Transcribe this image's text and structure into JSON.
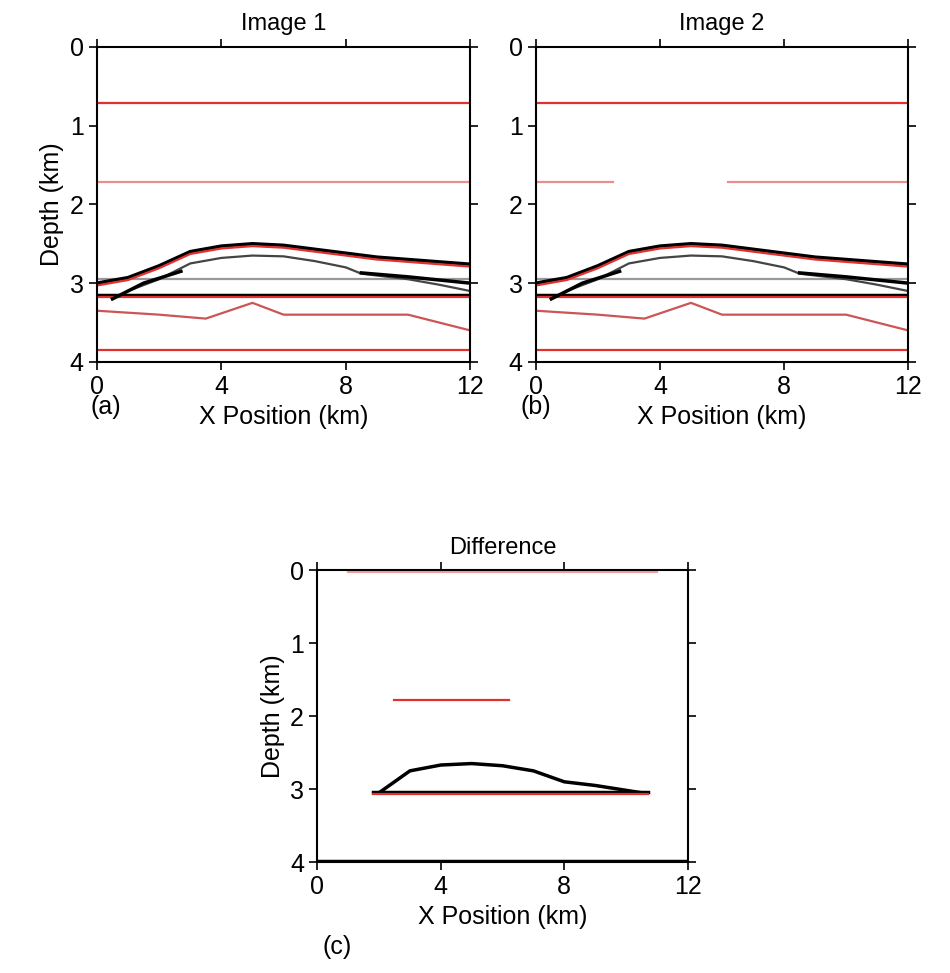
{
  "chart_data": [
    {
      "type": "line",
      "title": "Image 1",
      "x_label": "X Position (km)",
      "y_label": "Depth (km)",
      "annotations": [
        "(a)"
      ],
      "xlim": [
        0,
        12
      ],
      "xticks": [
        0,
        4,
        8,
        12
      ],
      "ylim": [
        4,
        0
      ],
      "yticks": [
        0,
        1,
        2,
        3,
        4
      ],
      "series": [
        {
          "color": "#e03030",
          "x": [
            0,
            12
          ],
          "values": [
            0.72,
            0.72
          ]
        },
        {
          "color": "#e89090",
          "x": [
            0,
            12
          ],
          "values": [
            1.72,
            1.72
          ]
        },
        {
          "color": "#999999",
          "x": [
            0,
            12
          ],
          "values": [
            2.95,
            2.95
          ]
        },
        {
          "color": "#000000",
          "x": [
            0,
            12
          ],
          "values": [
            3.15,
            3.15
          ]
        },
        {
          "color": "#e03030",
          "x": [
            0,
            12
          ],
          "values": [
            3.17,
            3.17
          ]
        },
        {
          "color": "#000000",
          "x": [
            0,
            1,
            2,
            3,
            4,
            5,
            6,
            7,
            8,
            9,
            10,
            11,
            12
          ],
          "values": [
            3.0,
            2.93,
            2.78,
            2.6,
            2.53,
            2.5,
            2.52,
            2.57,
            2.62,
            2.67,
            2.7,
            2.73,
            2.76
          ]
        },
        {
          "color": "#e03030",
          "x": [
            0,
            1,
            2,
            3,
            4,
            5,
            6,
            7,
            8,
            9,
            10,
            11,
            12
          ],
          "values": [
            3.03,
            2.96,
            2.81,
            2.63,
            2.56,
            2.53,
            2.55,
            2.6,
            2.65,
            2.7,
            2.73,
            2.76,
            2.79
          ]
        },
        {
          "color": "#444444",
          "x": [
            1,
            2,
            3,
            4,
            5,
            6,
            7,
            8,
            8.5,
            10,
            11,
            12
          ],
          "values": [
            3.1,
            2.95,
            2.75,
            2.68,
            2.65,
            2.66,
            2.72,
            2.8,
            2.88,
            2.95,
            3.02,
            3.1
          ]
        },
        {
          "color": "#000000",
          "x": [
            0.5,
            1.5,
            2.7
          ],
          "values": [
            3.2,
            3.0,
            2.85
          ]
        },
        {
          "color": "#000000",
          "x": [
            8.5,
            10,
            12
          ],
          "values": [
            2.87,
            2.92,
            3.0
          ]
        },
        {
          "color": "#cc5555",
          "x": [
            0,
            2,
            3.5,
            5,
            6,
            10,
            12
          ],
          "values": [
            3.35,
            3.4,
            3.45,
            3.25,
            3.4,
            3.4,
            3.6
          ]
        },
        {
          "color": "#e03030",
          "x": [
            0,
            12
          ],
          "values": [
            3.85,
            3.85
          ]
        }
      ]
    },
    {
      "type": "line",
      "title": "Image 2",
      "x_label": "X Position (km)",
      "y_label": null,
      "annotations": [
        "(b)"
      ],
      "xlim": [
        0,
        12
      ],
      "xticks": [
        0,
        4,
        8,
        12
      ],
      "ylim": [
        4,
        0
      ],
      "yticks": [
        0,
        1,
        2,
        3,
        4
      ],
      "series": [
        {
          "color": "#e03030",
          "x": [
            0,
            12
          ],
          "values": [
            0.72,
            0.72
          ]
        },
        {
          "color": "#e89090",
          "x": [
            0,
            2.5
          ],
          "values": [
            1.72,
            1.72
          ]
        },
        {
          "color": "#e89090",
          "x": [
            6.2,
            12
          ],
          "values": [
            1.72,
            1.72
          ]
        },
        {
          "color": "#999999",
          "x": [
            0,
            12
          ],
          "values": [
            2.95,
            2.95
          ]
        },
        {
          "color": "#000000",
          "x": [
            0,
            12
          ],
          "values": [
            3.15,
            3.15
          ]
        },
        {
          "color": "#e03030",
          "x": [
            0,
            12
          ],
          "values": [
            3.17,
            3.17
          ]
        },
        {
          "color": "#000000",
          "x": [
            0,
            1,
            2,
            3,
            4,
            5,
            6,
            7,
            8,
            9,
            10,
            11,
            12
          ],
          "values": [
            3.0,
            2.93,
            2.78,
            2.6,
            2.53,
            2.5,
            2.52,
            2.57,
            2.62,
            2.67,
            2.7,
            2.73,
            2.76
          ]
        },
        {
          "color": "#e03030",
          "x": [
            0,
            1,
            2,
            3,
            4,
            5,
            6,
            7,
            8,
            9,
            10,
            11,
            12
          ],
          "values": [
            3.03,
            2.96,
            2.81,
            2.63,
            2.56,
            2.53,
            2.55,
            2.6,
            2.65,
            2.7,
            2.73,
            2.76,
            2.79
          ]
        },
        {
          "color": "#444444",
          "x": [
            1,
            2,
            3,
            4,
            5,
            6,
            7,
            8,
            8.5,
            10,
            11,
            12
          ],
          "values": [
            3.1,
            2.95,
            2.75,
            2.68,
            2.65,
            2.66,
            2.72,
            2.8,
            2.88,
            2.95,
            3.02,
            3.1
          ]
        },
        {
          "color": "#000000",
          "x": [
            0.5,
            1.5,
            2.7
          ],
          "values": [
            3.2,
            3.0,
            2.85
          ]
        },
        {
          "color": "#000000",
          "x": [
            8.5,
            10,
            12
          ],
          "values": [
            2.87,
            2.92,
            3.0
          ]
        },
        {
          "color": "#cc5555",
          "x": [
            0,
            2,
            3.5,
            5,
            6,
            10,
            12
          ],
          "values": [
            3.35,
            3.4,
            3.45,
            3.25,
            3.4,
            3.4,
            3.6
          ]
        },
        {
          "color": "#e03030",
          "x": [
            0,
            12
          ],
          "values": [
            3.85,
            3.85
          ]
        }
      ]
    },
    {
      "type": "line",
      "title": "Difference",
      "x_label": "X Position (km)",
      "y_label": "Depth (km)",
      "annotations": [
        "(c)"
      ],
      "xlim": [
        0,
        12
      ],
      "xticks": [
        0,
        4,
        8,
        12
      ],
      "ylim": [
        4,
        0
      ],
      "yticks": [
        0,
        1,
        2,
        3,
        4
      ],
      "series": [
        {
          "color": "#f0a0a0",
          "x": [
            1,
            11
          ],
          "values": [
            0.02,
            0.02
          ]
        },
        {
          "color": "#e03030",
          "x": [
            2.5,
            6.2
          ],
          "values": [
            1.78,
            1.78
          ]
        },
        {
          "color": "#000000",
          "x": [
            2,
            3,
            4,
            5,
            6,
            7,
            8,
            9,
            10.5
          ],
          "values": [
            3.05,
            2.75,
            2.67,
            2.65,
            2.68,
            2.75,
            2.9,
            2.95,
            3.05
          ]
        },
        {
          "color": "#000000",
          "x": [
            1.8,
            10.7
          ],
          "values": [
            3.04,
            3.04
          ]
        },
        {
          "color": "#e03030",
          "x": [
            1.8,
            10.7
          ],
          "values": [
            3.07,
            3.07
          ]
        },
        {
          "color": "#000000",
          "x": [
            0,
            12
          ],
          "values": [
            3.98,
            3.98
          ]
        }
      ]
    }
  ]
}
